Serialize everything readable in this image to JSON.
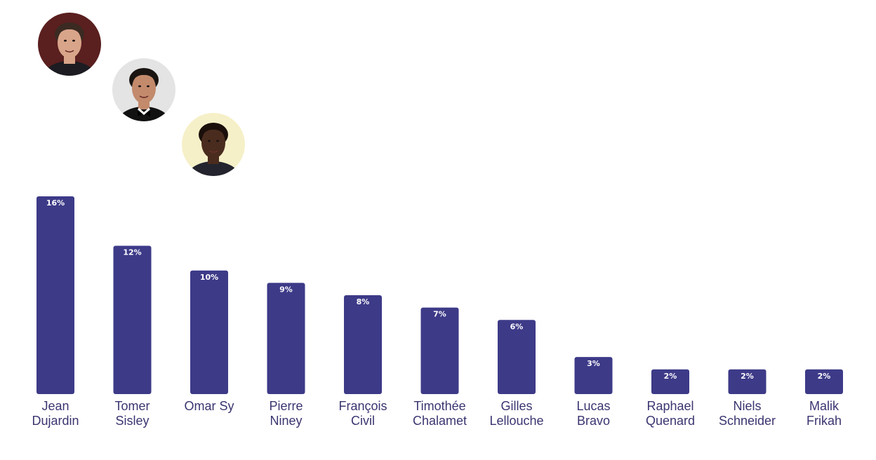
{
  "chart_data": {
    "type": "bar",
    "title": "",
    "xlabel": "",
    "ylabel": "",
    "ylim": [
      0,
      16
    ],
    "grid": false,
    "value_suffix": "%",
    "bar_color": "#3d3a88",
    "label_color": "#3a3570",
    "categories": [
      [
        "Jean",
        "Dujardin"
      ],
      [
        "Tomer",
        "Sisley"
      ],
      [
        "Omar Sy"
      ],
      [
        "Pierre",
        "Niney"
      ],
      [
        "François",
        "Civil"
      ],
      [
        "Timothée",
        "Chalamet"
      ],
      [
        "Gilles",
        "Lellouche"
      ],
      [
        "Lucas",
        "Bravo"
      ],
      [
        "Raphael",
        "Quenard"
      ],
      [
        "Niels",
        "Schneider"
      ],
      [
        "Malik",
        "Frikah"
      ]
    ],
    "values": [
      16,
      12,
      10,
      9,
      8,
      7,
      6,
      3,
      2,
      2,
      2
    ],
    "value_labels": [
      "16%",
      "12%",
      "10%",
      "9%",
      "8%",
      "7%",
      "6%",
      "3%",
      "2%",
      "2%",
      "2%"
    ],
    "portraits": [
      {
        "category_index": 0,
        "icon": "portrait-jean-dujardin-icon",
        "skin": "#d9a58a",
        "hair": "#3b2a22",
        "bg": "#5a1f1f",
        "clothing": "#1c1c22"
      },
      {
        "category_index": 1,
        "icon": "portrait-tomer-sisley-icon",
        "skin": "#c38a6c",
        "hair": "#1a1512",
        "bg": "#e4e4e4",
        "clothing": "#111111"
      },
      {
        "category_index": 2,
        "icon": "portrait-omar-sy-icon",
        "skin": "#4a2c1e",
        "hair": "#1a0f0a",
        "bg": "#f6f0c8",
        "clothing": "#23242e"
      }
    ]
  }
}
